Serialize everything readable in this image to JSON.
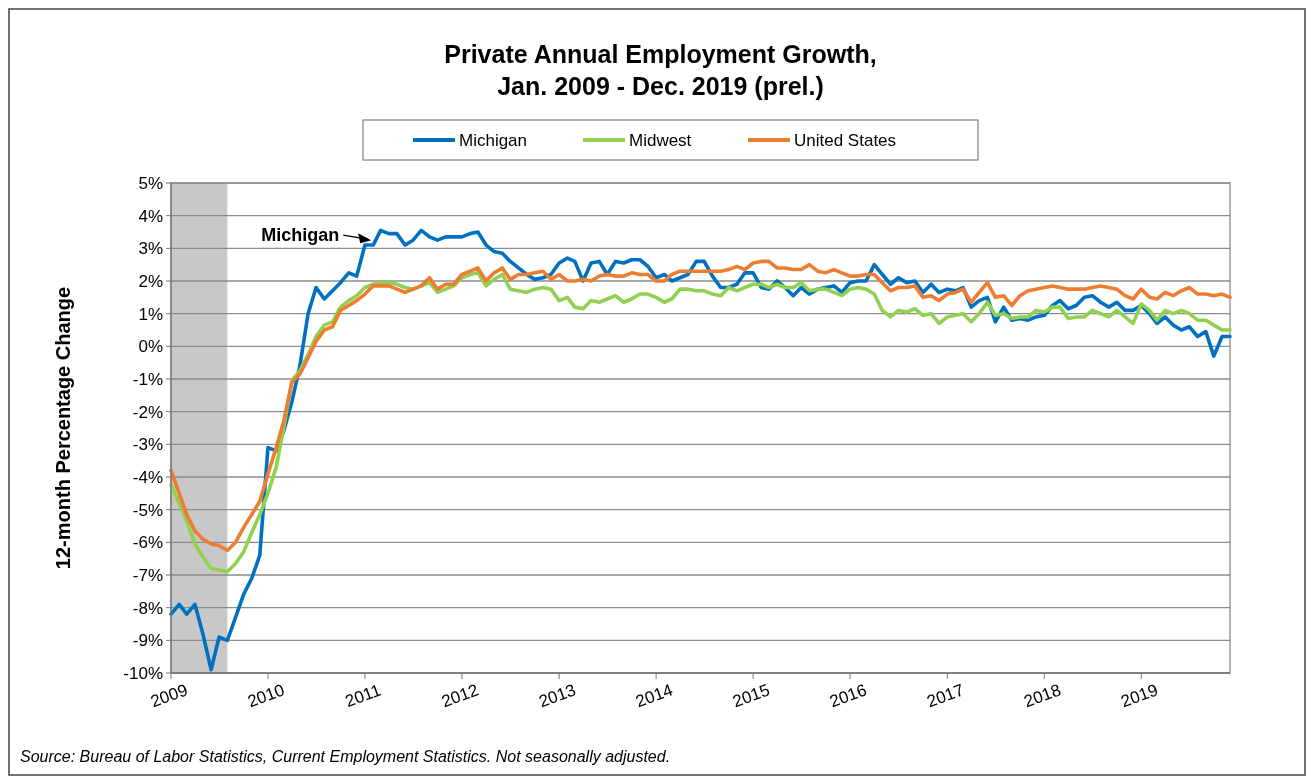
{
  "chart_data": {
    "type": "line",
    "title": "Private Annual Employment Growth,\nJan. 2009 - Dec. 2019 (prel.)",
    "ylabel": "12-month Percentage Change",
    "x": [
      "2009-01",
      "2009-02",
      "2009-03",
      "2009-04",
      "2009-05",
      "2009-06",
      "2009-07",
      "2009-08",
      "2009-09",
      "2009-10",
      "2009-11",
      "2009-12",
      "2010-01",
      "2010-02",
      "2010-03",
      "2010-04",
      "2010-05",
      "2010-06",
      "2010-07",
      "2010-08",
      "2010-09",
      "2010-10",
      "2010-11",
      "2010-12",
      "2011-01",
      "2011-02",
      "2011-03",
      "2011-04",
      "2011-05",
      "2011-06",
      "2011-07",
      "2011-08",
      "2011-09",
      "2011-10",
      "2011-11",
      "2011-12",
      "2012-01",
      "2012-02",
      "2012-03",
      "2012-04",
      "2012-05",
      "2012-06",
      "2012-07",
      "2012-08",
      "2012-09",
      "2012-10",
      "2012-11",
      "2012-12",
      "2013-01",
      "2013-02",
      "2013-03",
      "2013-04",
      "2013-05",
      "2013-06",
      "2013-07",
      "2013-08",
      "2013-09",
      "2013-10",
      "2013-11",
      "2013-12",
      "2014-01",
      "2014-02",
      "2014-03",
      "2014-04",
      "2014-05",
      "2014-06",
      "2014-07",
      "2014-08",
      "2014-09",
      "2014-10",
      "2014-11",
      "2014-12",
      "2015-01",
      "2015-02",
      "2015-03",
      "2015-04",
      "2015-05",
      "2015-06",
      "2015-07",
      "2015-08",
      "2015-09",
      "2015-10",
      "2015-11",
      "2015-12",
      "2016-01",
      "2016-02",
      "2016-03",
      "2016-04",
      "2016-05",
      "2016-06",
      "2016-07",
      "2016-08",
      "2016-09",
      "2016-10",
      "2016-11",
      "2016-12",
      "2017-01",
      "2017-02",
      "2017-03",
      "2017-04",
      "2017-05",
      "2017-06",
      "2017-07",
      "2017-08",
      "2017-09",
      "2017-10",
      "2017-11",
      "2017-12",
      "2018-01",
      "2018-02",
      "2018-03",
      "2018-04",
      "2018-05",
      "2018-06",
      "2018-07",
      "2018-08",
      "2018-09",
      "2018-10",
      "2018-11",
      "2018-12",
      "2019-01",
      "2019-02",
      "2019-03",
      "2019-04",
      "2019-05",
      "2019-06",
      "2019-07",
      "2019-08",
      "2019-09",
      "2019-10",
      "2019-11",
      "2019-12"
    ],
    "series": [
      {
        "name": "Michigan",
        "color": "#0070c0",
        "values": [
          -8.2,
          -7.9,
          -8.2,
          -7.9,
          -8.8,
          -9.9,
          -8.9,
          -9.0,
          -8.3,
          -7.6,
          -7.1,
          -6.4,
          -3.1,
          -3.2,
          -2.6,
          -1.7,
          -0.6,
          1.0,
          1.8,
          1.45,
          1.7,
          1.95,
          2.25,
          2.15,
          3.1,
          3.1,
          3.55,
          3.45,
          3.45,
          3.1,
          3.25,
          3.55,
          3.35,
          3.25,
          3.35,
          3.35,
          3.35,
          3.45,
          3.5,
          3.1,
          2.9,
          2.85,
          2.6,
          2.4,
          2.2,
          2.05,
          2.1,
          2.2,
          2.55,
          2.7,
          2.6,
          2.0,
          2.55,
          2.6,
          2.2,
          2.6,
          2.55,
          2.65,
          2.65,
          2.45,
          2.1,
          2.2,
          2.0,
          2.1,
          2.2,
          2.6,
          2.6,
          2.15,
          1.8,
          1.8,
          1.9,
          2.25,
          2.25,
          1.8,
          1.75,
          2.0,
          1.8,
          1.55,
          1.8,
          1.6,
          1.75,
          1.8,
          1.85,
          1.65,
          1.95,
          2.0,
          2.0,
          2.5,
          2.2,
          1.9,
          2.1,
          1.95,
          2.0,
          1.65,
          1.9,
          1.65,
          1.75,
          1.7,
          1.8,
          1.2,
          1.4,
          1.5,
          0.75,
          1.2,
          0.8,
          0.85,
          0.8,
          0.9,
          0.95,
          1.25,
          1.4,
          1.15,
          1.25,
          1.5,
          1.55,
          1.35,
          1.2,
          1.35,
          1.1,
          1.1,
          1.25,
          1.0,
          0.7,
          0.9,
          0.65,
          0.5,
          0.6,
          0.3,
          0.45,
          -0.3,
          0.3,
          0.3
        ]
      },
      {
        "name": "Midwest",
        "color": "#92d050",
        "values": [
          -4.25,
          -4.8,
          -5.35,
          -6.05,
          -6.45,
          -6.8,
          -6.85,
          -6.9,
          -6.65,
          -6.3,
          -5.7,
          -5.15,
          -4.5,
          -3.7,
          -2.5,
          -1.05,
          -0.75,
          -0.25,
          0.3,
          0.65,
          0.75,
          1.2,
          1.4,
          1.55,
          1.8,
          1.9,
          1.95,
          1.95,
          1.9,
          1.8,
          1.75,
          1.85,
          1.95,
          1.65,
          1.75,
          1.85,
          2.1,
          2.2,
          2.25,
          1.85,
          2.05,
          2.2,
          1.75,
          1.7,
          1.65,
          1.75,
          1.8,
          1.75,
          1.4,
          1.5,
          1.2,
          1.15,
          1.4,
          1.35,
          1.45,
          1.55,
          1.35,
          1.45,
          1.6,
          1.6,
          1.5,
          1.35,
          1.45,
          1.75,
          1.75,
          1.7,
          1.7,
          1.6,
          1.55,
          1.8,
          1.7,
          1.8,
          1.9,
          1.9,
          1.8,
          1.9,
          1.8,
          1.8,
          1.95,
          1.7,
          1.75,
          1.75,
          1.65,
          1.55,
          1.75,
          1.8,
          1.75,
          1.6,
          1.1,
          0.9,
          1.1,
          1.05,
          1.15,
          0.95,
          1.0,
          0.7,
          0.9,
          0.95,
          1.0,
          0.75,
          1.0,
          1.35,
          0.95,
          1.0,
          0.85,
          0.9,
          0.9,
          1.1,
          1.05,
          1.2,
          1.2,
          0.85,
          0.9,
          0.9,
          1.1,
          1.0,
          0.9,
          1.1,
          0.9,
          0.7,
          1.3,
          1.1,
          0.8,
          1.1,
          1.0,
          1.1,
          1.0,
          0.8,
          0.8,
          0.65,
          0.5,
          0.5
        ]
      },
      {
        "name": "United States",
        "color": "#ed7d31",
        "values": [
          -3.8,
          -4.5,
          -5.15,
          -5.65,
          -5.9,
          -6.05,
          -6.1,
          -6.25,
          -6.0,
          -5.55,
          -5.15,
          -4.75,
          -3.9,
          -3.1,
          -2.3,
          -1.1,
          -0.85,
          -0.35,
          0.15,
          0.5,
          0.6,
          1.1,
          1.25,
          1.4,
          1.6,
          1.85,
          1.85,
          1.85,
          1.75,
          1.65,
          1.75,
          1.85,
          2.1,
          1.75,
          1.9,
          1.9,
          2.2,
          2.3,
          2.4,
          2.0,
          2.25,
          2.4,
          2.05,
          2.2,
          2.2,
          2.25,
          2.3,
          2.05,
          2.2,
          2.0,
          2.0,
          2.05,
          2.0,
          2.15,
          2.2,
          2.15,
          2.15,
          2.25,
          2.2,
          2.2,
          2.0,
          2.0,
          2.2,
          2.3,
          2.3,
          2.3,
          2.3,
          2.3,
          2.3,
          2.35,
          2.45,
          2.35,
          2.55,
          2.6,
          2.6,
          2.4,
          2.4,
          2.35,
          2.35,
          2.5,
          2.3,
          2.25,
          2.35,
          2.25,
          2.15,
          2.15,
          2.2,
          2.2,
          1.95,
          1.7,
          1.8,
          1.8,
          1.85,
          1.5,
          1.55,
          1.4,
          1.6,
          1.65,
          1.75,
          1.35,
          1.65,
          1.95,
          1.5,
          1.55,
          1.25,
          1.55,
          1.7,
          1.75,
          1.8,
          1.85,
          1.8,
          1.75,
          1.75,
          1.75,
          1.8,
          1.85,
          1.8,
          1.75,
          1.55,
          1.45,
          1.75,
          1.5,
          1.45,
          1.65,
          1.55,
          1.7,
          1.8,
          1.6,
          1.6,
          1.55,
          1.6,
          1.5
        ]
      }
    ],
    "xlim": [
      "2009-01",
      "2019-12"
    ],
    "xticks": [
      "2009",
      "2010",
      "2011",
      "2012",
      "2013",
      "2014",
      "2015",
      "2016",
      "2017",
      "2018",
      "2019"
    ],
    "ylim": [
      -10,
      5
    ],
    "yticks": [
      {
        "value": -10,
        "label": "-10%"
      },
      {
        "value": -9,
        "label": "-9%"
      },
      {
        "value": -8,
        "label": "-8%"
      },
      {
        "value": -7,
        "label": "-7%"
      },
      {
        "value": -6,
        "label": "-6%"
      },
      {
        "value": -5,
        "label": "-5%"
      },
      {
        "value": -4,
        "label": "-4%"
      },
      {
        "value": -3,
        "label": "-3%"
      },
      {
        "value": -2,
        "label": "-2%"
      },
      {
        "value": -1,
        "label": "-1%"
      },
      {
        "value": 0,
        "label": "0%"
      },
      {
        "value": 1,
        "label": "1%"
      },
      {
        "value": 2,
        "label": "2%"
      },
      {
        "value": 3,
        "label": "3%"
      },
      {
        "value": 4,
        "label": "4%"
      },
      {
        "value": 5,
        "label": "5%"
      }
    ],
    "grid": "y",
    "legend": "top",
    "bands": [
      {
        "axis": "x",
        "from": "2009-01",
        "to": "2009-08",
        "color": "#c8c8c8"
      }
    ],
    "annotations": [
      {
        "text": "Michigan",
        "x": "2011-02",
        "y": 3.25
      },
      "Source: Bureau of Labor Statistics, Current Employment Statistics. Not seasonally adjusted."
    ]
  }
}
